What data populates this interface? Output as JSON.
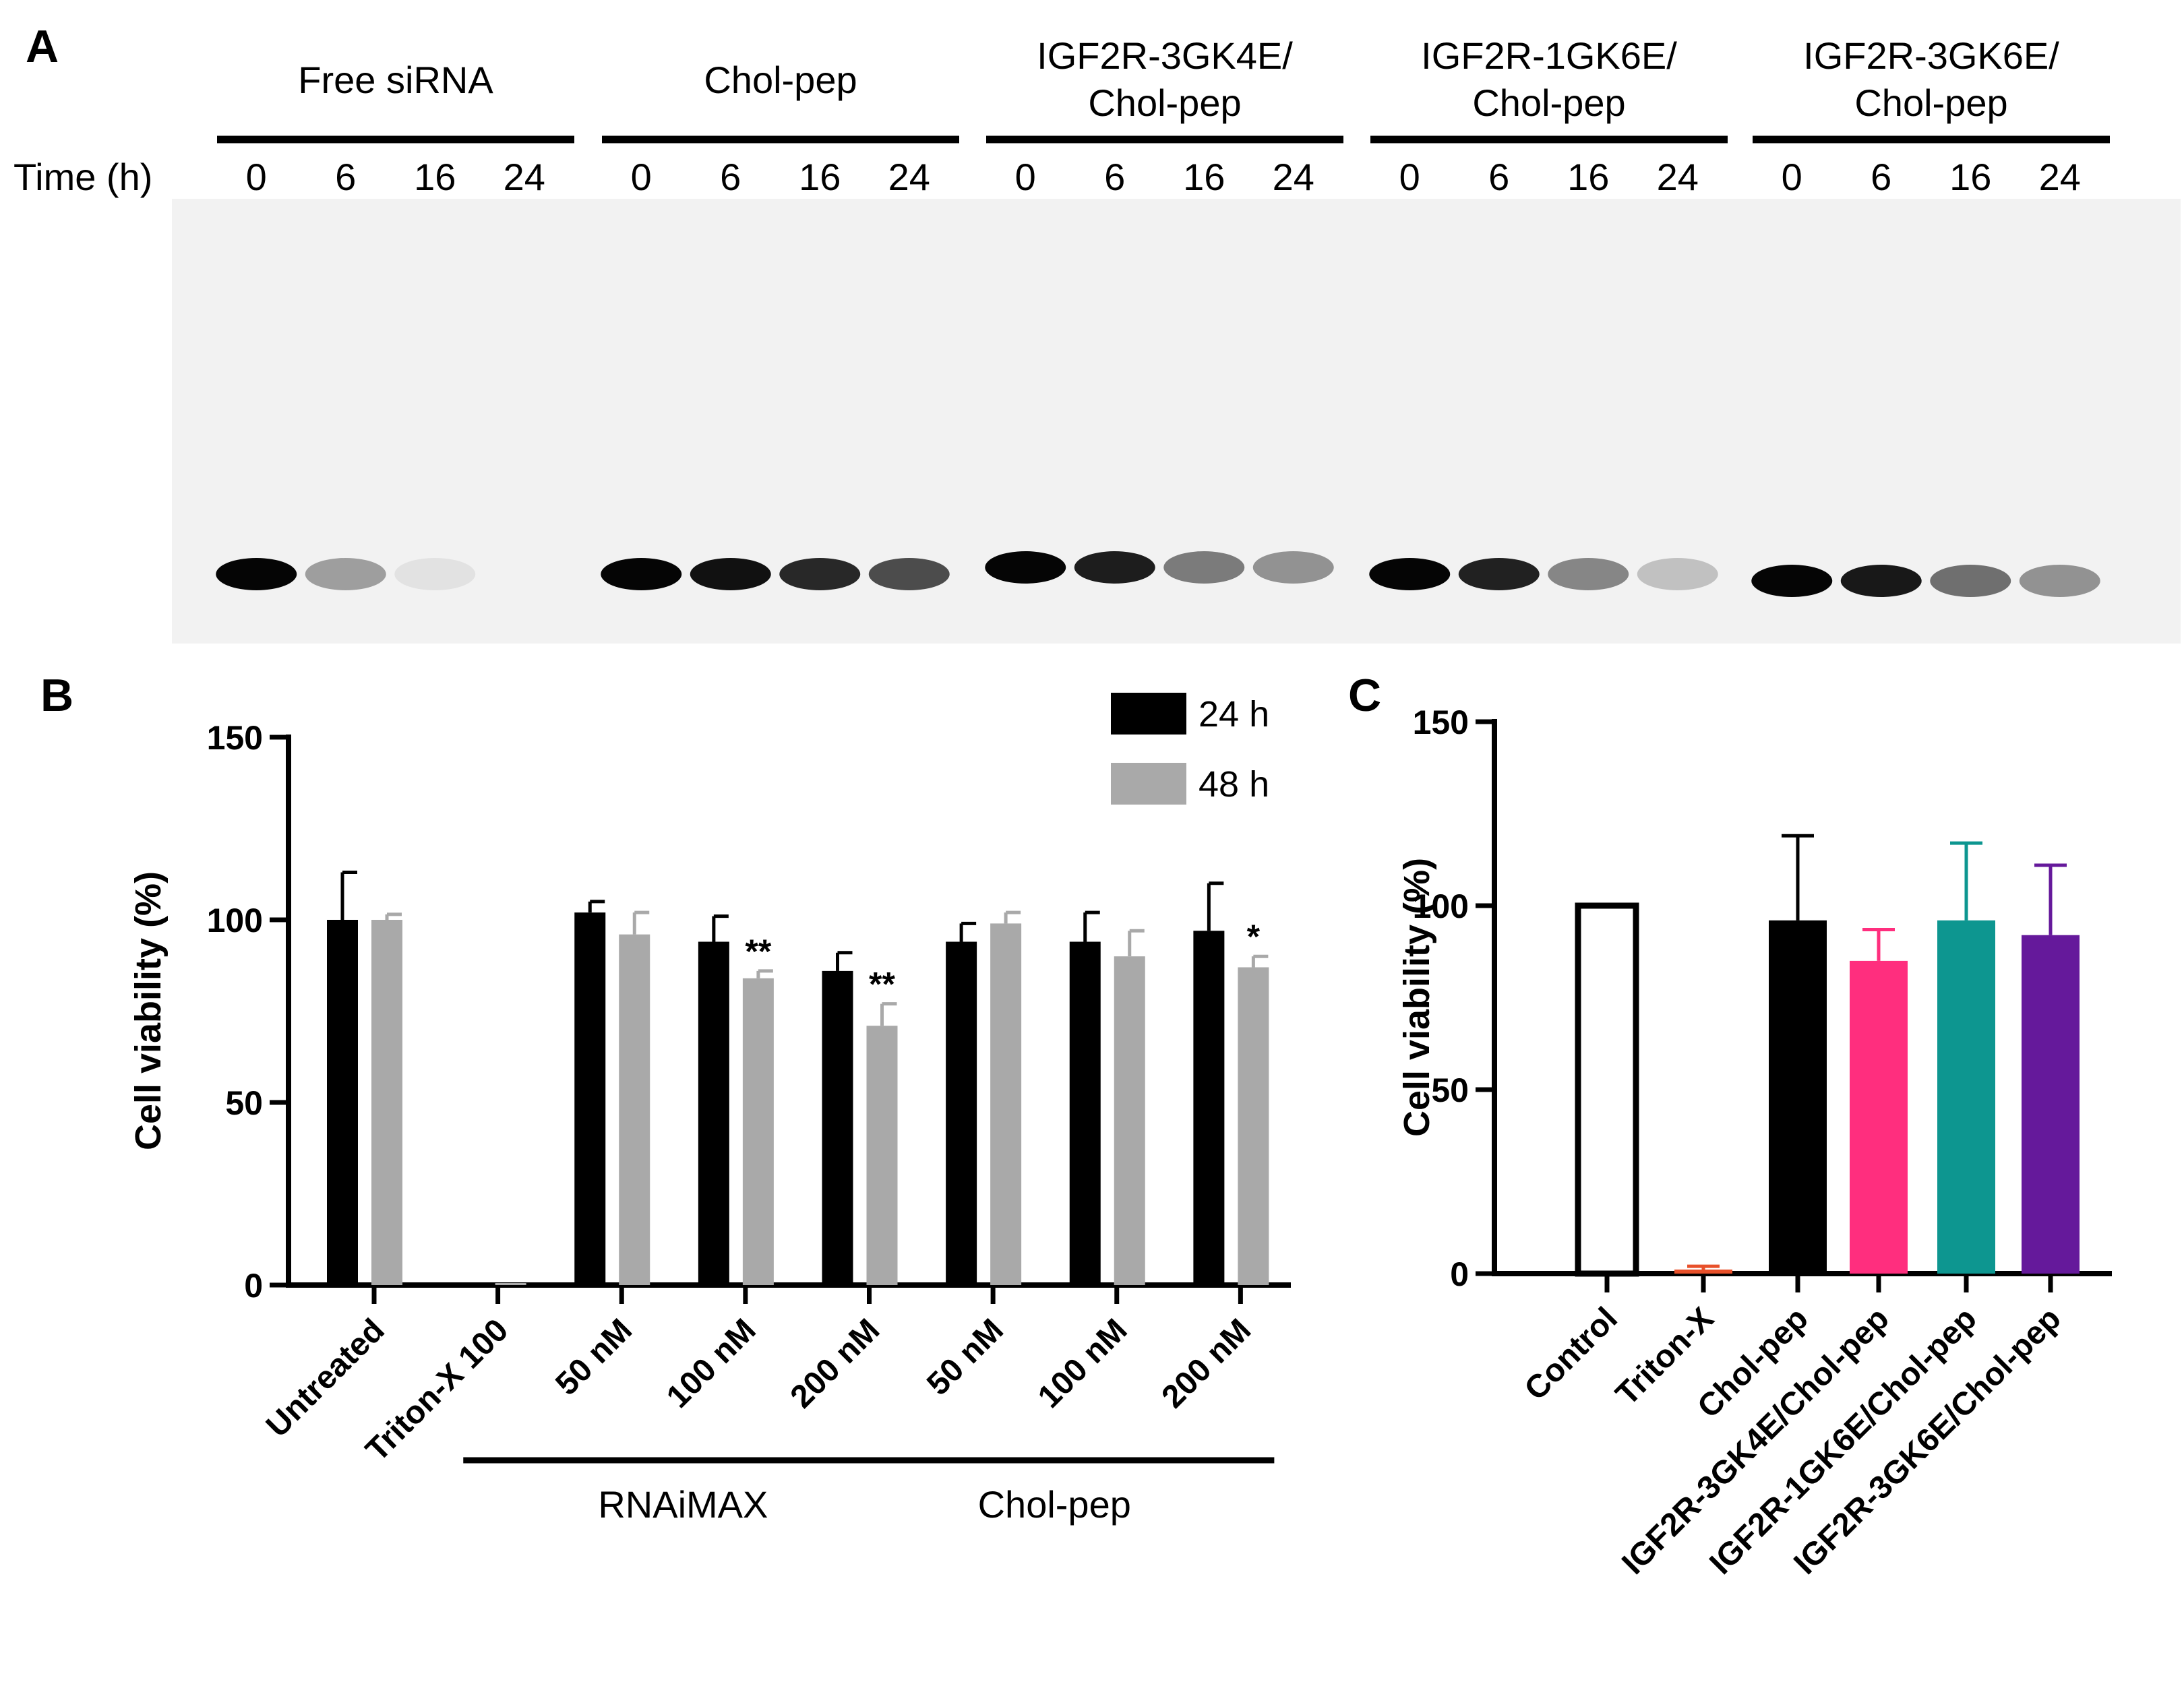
{
  "panel_a": {
    "label": "A",
    "time_label": "Time (h)",
    "times": [
      "0",
      "6",
      "16",
      "24"
    ],
    "groups": [
      {
        "line1": "Free siRNA",
        "line2": "",
        "band_intensity": [
          1.0,
          0.35,
          0.06,
          0.0
        ]
      },
      {
        "line1": "Chol-pep",
        "line2": "",
        "band_intensity": [
          1.0,
          0.95,
          0.85,
          0.7
        ]
      },
      {
        "line1": "IGF2R-3GK4E/",
        "line2": "Chol-pep",
        "band_intensity": [
          1.0,
          0.9,
          0.5,
          0.4
        ]
      },
      {
        "line1": "IGF2R-1GK6E/",
        "line2": "Chol-pep",
        "band_intensity": [
          1.0,
          0.88,
          0.45,
          0.2
        ]
      },
      {
        "line1": "IGF2R-3GK6E/",
        "line2": "Chol-pep",
        "band_intensity": [
          1.0,
          0.92,
          0.55,
          0.4
        ]
      }
    ]
  },
  "chart_data": [
    {
      "panel": "B",
      "type": "bar",
      "ylabel": "Cell viability (%)",
      "ylim": [
        0,
        150
      ],
      "yticks": [
        "0",
        "50",
        "100",
        "150"
      ],
      "categories": [
        "Untreated",
        "Triton-X 100",
        "50 nM",
        "100 nM",
        "200 nM",
        "50 nM",
        "100 nM",
        "200 nM"
      ],
      "category_groups": [
        {
          "label": "RNAiMAX",
          "from": 2,
          "to": 4
        },
        {
          "label": "Chol-pep",
          "from": 5,
          "to": 7
        }
      ],
      "legend": {
        "position": "top-right"
      },
      "series": [
        {
          "name": "24 h",
          "color": "#000000",
          "values": [
            100,
            0.5,
            102,
            94,
            86,
            94,
            94,
            97
          ],
          "errors": [
            13,
            0,
            3,
            7,
            5,
            5,
            8,
            13
          ],
          "significance": [
            "",
            "",
            "",
            "",
            "",
            "",
            "",
            ""
          ]
        },
        {
          "name": "48 h",
          "color": "#a9a9a9",
          "values": [
            100,
            0.5,
            96,
            84,
            71,
            99,
            90,
            87
          ],
          "errors": [
            1.5,
            0,
            6,
            2,
            6,
            3,
            7,
            3
          ],
          "significance": [
            "",
            "",
            "",
            "**",
            "**",
            "",
            "",
            "*"
          ]
        }
      ]
    },
    {
      "panel": "C",
      "type": "bar",
      "ylabel": "Cell viability (%)",
      "ylim": [
        0,
        150
      ],
      "yticks": [
        "0",
        "50",
        "100",
        "150"
      ],
      "categories": [
        "Control",
        "Triton-X",
        "Chol-pep",
        "IGF2R-3GK4E/Chol-pep",
        "IGF2R-1GK6E/Chol-pep",
        "IGF2R-3GK6E/Chol-pep"
      ],
      "values": [
        100,
        1,
        96,
        85,
        96,
        92
      ],
      "errors": [
        0,
        1,
        23,
        8.5,
        21,
        19
      ],
      "colors": [
        "#ffffff",
        "#e8502a",
        "#000000",
        "#ff2e7e",
        "#0d9690",
        "#65199b"
      ]
    }
  ],
  "panel_labels": {
    "b": "B",
    "c": "C"
  }
}
